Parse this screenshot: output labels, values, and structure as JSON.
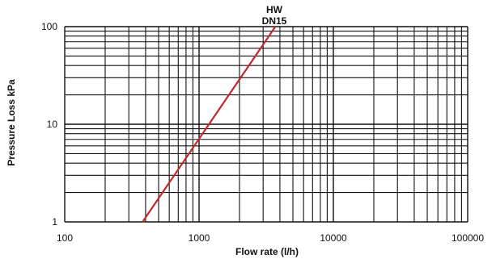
{
  "chart_data": {
    "type": "line",
    "x_scale": "log",
    "y_scale": "log",
    "xlim": [
      100,
      100000
    ],
    "ylim": [
      1,
      100
    ],
    "xlabel": "Flow rate (l/h)",
    "ylabel": "Pressure Loss kPa",
    "x_ticks": [
      "100",
      "1000",
      "10000",
      "100000"
    ],
    "y_ticks": [
      "1",
      "10",
      "100"
    ],
    "grid": true,
    "series": [
      {
        "label_lines": [
          "HW",
          "DN15"
        ],
        "color": "#c0282d",
        "x": [
          380,
          3700
        ],
        "y": [
          1,
          100
        ]
      }
    ]
  }
}
